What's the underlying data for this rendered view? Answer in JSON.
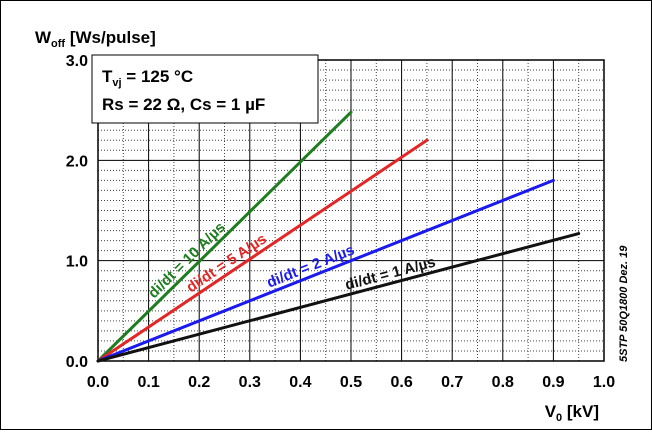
{
  "chart_data": {
    "type": "line",
    "ylabel_main": "W",
    "ylabel_sub": "off",
    "ylabel_rest": " [Ws/pulse]",
    "xlabel_main": "V",
    "xlabel_sub": "0",
    "xlabel_rest": " [kV]",
    "xlim": [
      0,
      1.0
    ],
    "ylim": [
      0,
      3.0
    ],
    "x_ticks": [
      "0.0",
      "0.1",
      "0.2",
      "0.3",
      "0.4",
      "0.5",
      "0.6",
      "0.7",
      "0.8",
      "0.9",
      "1.0"
    ],
    "y_ticks": [
      "0.0",
      "1.0",
      "2.0",
      "3.0"
    ],
    "grid": true,
    "conditions": {
      "line1_main": "T",
      "line1_sub": "vj",
      "line1_rest": " = 125 °C",
      "line2": "Rs = 22 Ω, Cs = 1 µF"
    },
    "series": [
      {
        "name": "di/dt = 10 A/µs",
        "color": "#1e7d1e",
        "x": [
          0,
          0.5
        ],
        "y": [
          0,
          2.48
        ]
      },
      {
        "name": "di/dt = 5 A/µs",
        "color": "#e32626",
        "x": [
          0,
          0.65
        ],
        "y": [
          0,
          2.2
        ]
      },
      {
        "name": "di/dt = 2 A/µs",
        "color": "#1a1aee",
        "x": [
          0,
          0.9
        ],
        "y": [
          0,
          1.8
        ]
      },
      {
        "name": "di/dt = 1 A/µs",
        "color": "#111111",
        "x": [
          0,
          0.95
        ],
        "y": [
          0,
          1.27
        ]
      }
    ],
    "side_note": "5STP 50Q1800 Dez. 19"
  }
}
